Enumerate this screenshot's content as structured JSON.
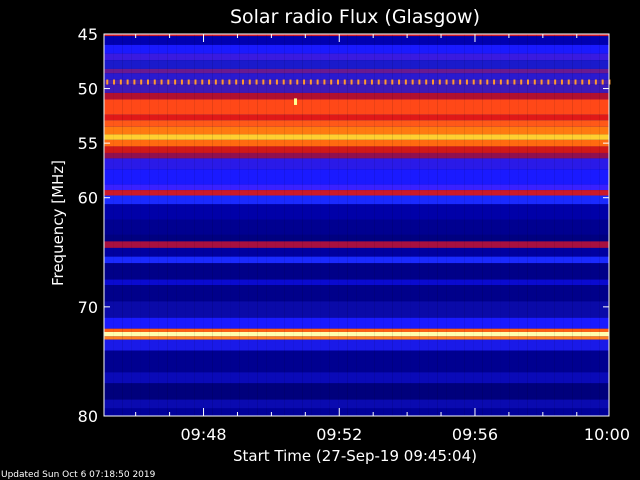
{
  "chart_data": {
    "type": "heatmap",
    "title": "Solar radio Flux (Glasgow)",
    "ylabel_text": "Frequency",
    "ylabel_unit": "MHz",
    "xlabel": "Start Time (27-Sep-19 09:45:04)",
    "xlim": [
      0,
      893
    ],
    "ylim": [
      45,
      80
    ],
    "x_ticks": [
      {
        "value": 176,
        "label": "09:48"
      },
      {
        "value": 416,
        "label": "09:52"
      },
      {
        "value": 656,
        "label": "09:56"
      },
      {
        "value": 896,
        "label": "10:00"
      }
    ],
    "y_ticks": [
      {
        "value": 45,
        "label": "45"
      },
      {
        "value": 50,
        "label": "50"
      },
      {
        "value": 55,
        "label": "55"
      },
      {
        "value": 60,
        "label": "60"
      },
      {
        "value": 70,
        "label": "70"
      },
      {
        "value": 80,
        "label": "80"
      }
    ],
    "bands": [
      {
        "from": 45.0,
        "to": 45.2,
        "color": "#cc1a2a"
      },
      {
        "from": 45.2,
        "to": 46.0,
        "color": "#0000b0"
      },
      {
        "from": 46.0,
        "to": 46.8,
        "color": "#1a1aff"
      },
      {
        "from": 46.8,
        "to": 47.4,
        "color": "#3a1ae0"
      },
      {
        "from": 47.4,
        "to": 48.2,
        "color": "#1a1acc"
      },
      {
        "from": 48.2,
        "to": 48.6,
        "color": "#6a1a90"
      },
      {
        "from": 48.6,
        "to": 49.2,
        "color": "#2a1ad0"
      },
      {
        "from": 49.2,
        "to": 49.6,
        "color": "#4a20b0"
      },
      {
        "from": 49.6,
        "to": 50.4,
        "color": "#3b1ab8"
      },
      {
        "from": 50.4,
        "to": 51.0,
        "color": "#b01030"
      },
      {
        "from": 51.0,
        "to": 52.4,
        "color": "#ff4818"
      },
      {
        "from": 52.4,
        "to": 52.9,
        "color": "#e01818"
      },
      {
        "from": 52.9,
        "to": 53.5,
        "color": "#ff5818"
      },
      {
        "from": 53.5,
        "to": 54.2,
        "color": "#ff7a10"
      },
      {
        "from": 54.2,
        "to": 54.7,
        "color": "#ffd030"
      },
      {
        "from": 54.7,
        "to": 55.3,
        "color": "#ff6a10"
      },
      {
        "from": 55.3,
        "to": 55.9,
        "color": "#d01818"
      },
      {
        "from": 55.9,
        "to": 56.4,
        "color": "#901050"
      },
      {
        "from": 56.4,
        "to": 57.4,
        "color": "#2a1ae8"
      },
      {
        "from": 57.4,
        "to": 58.8,
        "color": "#1a1aff"
      },
      {
        "from": 58.8,
        "to": 59.3,
        "color": "#3a20ff"
      },
      {
        "from": 59.3,
        "to": 59.8,
        "color": "#cc1a2a"
      },
      {
        "from": 59.8,
        "to": 60.6,
        "color": "#1a2aff"
      },
      {
        "from": 60.6,
        "to": 62.0,
        "color": "#0000a8"
      },
      {
        "from": 62.0,
        "to": 63.4,
        "color": "#000090"
      },
      {
        "from": 63.4,
        "to": 64.0,
        "color": "#000080"
      },
      {
        "from": 64.0,
        "to": 64.6,
        "color": "#a81040"
      },
      {
        "from": 64.6,
        "to": 65.4,
        "color": "#0000a0"
      },
      {
        "from": 65.4,
        "to": 66.0,
        "color": "#1a2aff"
      },
      {
        "from": 66.0,
        "to": 67.5,
        "color": "#000088"
      },
      {
        "from": 67.5,
        "to": 68.0,
        "color": "#0a0ad0"
      },
      {
        "from": 68.0,
        "to": 69.5,
        "color": "#00008a"
      },
      {
        "from": 69.5,
        "to": 71.0,
        "color": "#0a0aa8"
      },
      {
        "from": 71.0,
        "to": 72.0,
        "color": "#1a1aff"
      },
      {
        "from": 72.0,
        "to": 72.3,
        "color": "#ff6010"
      },
      {
        "from": 72.3,
        "to": 72.7,
        "color": "#ffffb0"
      },
      {
        "from": 72.7,
        "to": 73.0,
        "color": "#ff8020"
      },
      {
        "from": 73.0,
        "to": 74.0,
        "color": "#1a1ae8"
      },
      {
        "from": 74.0,
        "to": 76.0,
        "color": "#000090"
      },
      {
        "from": 76.0,
        "to": 77.0,
        "color": "#0a0ab8"
      },
      {
        "from": 77.0,
        "to": 78.5,
        "color": "#00007c"
      },
      {
        "from": 78.5,
        "to": 79.3,
        "color": "#0a0ab0"
      },
      {
        "from": 79.3,
        "to": 80.0,
        "color": "#00009a"
      }
    ],
    "dotted_band": {
      "freq": 49.4,
      "color": "#ff9a30",
      "spacing_s": 12
    },
    "burst": {
      "x": 336,
      "from": 50.9,
      "to": 51.5,
      "color": "#ffff90"
    },
    "grid": false
  },
  "footer": {
    "updated_text": "Updated Sun Oct  6 07:18:50 2019"
  }
}
